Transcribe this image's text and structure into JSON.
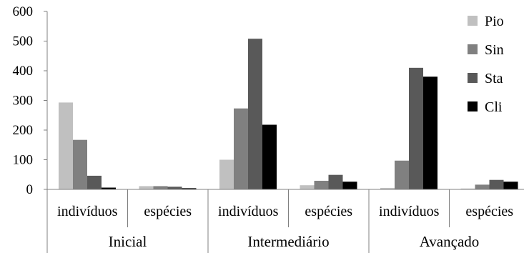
{
  "chart_data": {
    "type": "bar",
    "groups": [
      "Inicial",
      "Intermediário",
      "Avançado"
    ],
    "subcategories": [
      "indivíduos",
      "espécies"
    ],
    "categories": [
      "Inicial / indivíduos",
      "Inicial / espécies",
      "Intermediário / indivíduos",
      "Intermediário / espécies",
      "Avançado / indivíduos",
      "Avançado / espécies"
    ],
    "series": [
      {
        "name": "Pio",
        "color": "#c0c0c0",
        "values": [
          293,
          11,
          100,
          14,
          5,
          3
        ]
      },
      {
        "name": "Sin",
        "color": "#808080",
        "values": [
          167,
          11,
          273,
          29,
          97,
          16
        ]
      },
      {
        "name": "Sta",
        "color": "#595959",
        "values": [
          46,
          9,
          508,
          49,
          410,
          32
        ]
      },
      {
        "name": "Cli",
        "color": "#000000",
        "values": [
          6,
          4,
          218,
          26,
          380,
          26
        ]
      }
    ],
    "ylim": [
      0,
      600
    ],
    "yticks": [
      "0",
      "100",
      "200",
      "300",
      "400",
      "500",
      "600"
    ],
    "legend_position": "right",
    "grid": false,
    "title": "",
    "xlabel": "",
    "ylabel": ""
  }
}
